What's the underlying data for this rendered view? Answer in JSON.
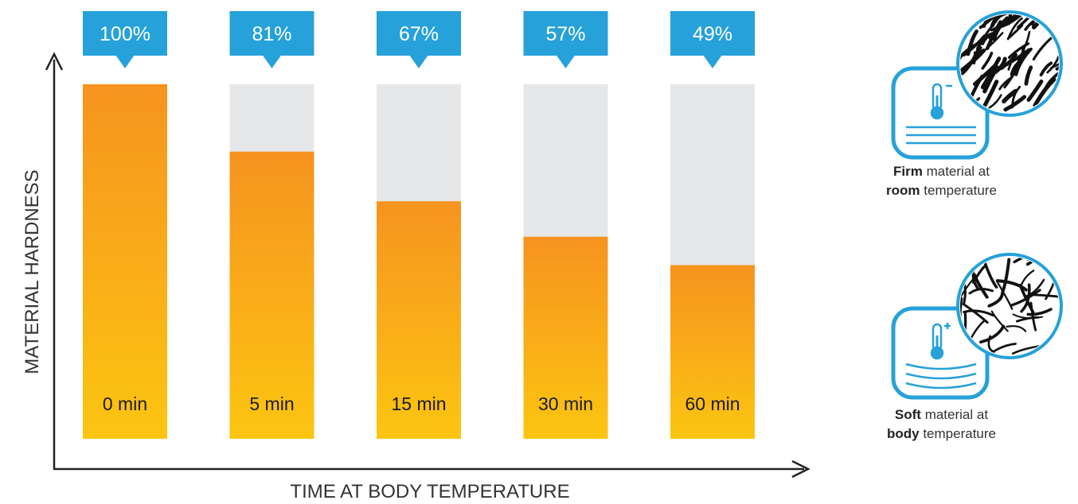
{
  "chart_data": {
    "type": "bar",
    "categories": [
      "0 min",
      "5 min",
      "15 min",
      "30 min",
      "60 min"
    ],
    "values": [
      100,
      81,
      67,
      57,
      49
    ],
    "value_labels": [
      "100%",
      "81%",
      "67%",
      "57%",
      "49%"
    ],
    "ylim": [
      0,
      100
    ],
    "xlabel": "TIME AT BODY TEMPERATURE",
    "ylabel": "MATERIAL HARDNESS",
    "grid": false
  },
  "legend": {
    "firm": {
      "bold1": "Firm",
      "text1": " material at",
      "bold2": "room",
      "text2": " temperature"
    },
    "soft": {
      "bold1": "Soft",
      "text1": " material at",
      "bold2": "body",
      "text2": " temperature"
    }
  },
  "colors": {
    "bar_top": "#f6931f",
    "bar_bottom": "#fcc511",
    "bar_track": "#e6e7e8",
    "callout": "#26a1d9",
    "axis": "#222222"
  },
  "icons": {
    "firm_icon": "thermometer-minus-icon",
    "soft_icon": "thermometer-plus-icon",
    "firm_texture": "dense-fiber-texture-icon",
    "soft_texture": "loose-fiber-texture-icon"
  }
}
